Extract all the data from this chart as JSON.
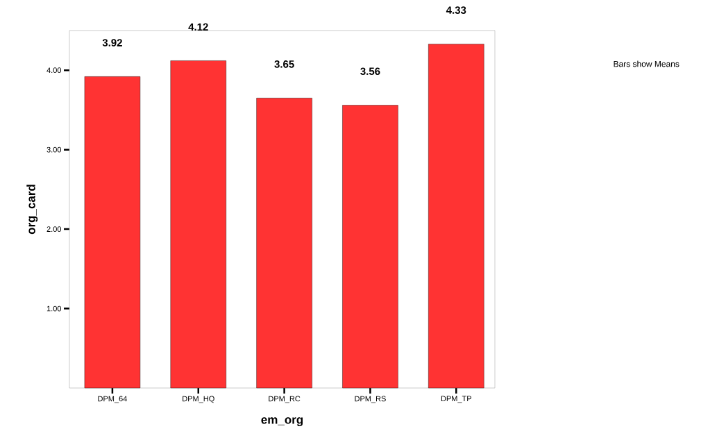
{
  "chart_data": {
    "type": "bar",
    "xlabel": "em_org",
    "ylabel": "org_card",
    "categories": [
      "DPM_64",
      "DPM_HQ",
      "DPM_RC",
      "DPM_RS",
      "DPM_TP"
    ],
    "values": [
      3.92,
      4.12,
      3.65,
      3.56,
      4.33
    ],
    "color": "#ff3333",
    "ylim": [
      0,
      4.5
    ],
    "yticks": [
      {
        "value": 1,
        "label": "1.00"
      },
      {
        "value": 2,
        "label": "2.00"
      },
      {
        "value": 3,
        "label": "3.00"
      },
      {
        "value": 4,
        "label": "4.00"
      }
    ],
    "data_labels": true,
    "annotations": [
      "Bars show Means"
    ]
  }
}
